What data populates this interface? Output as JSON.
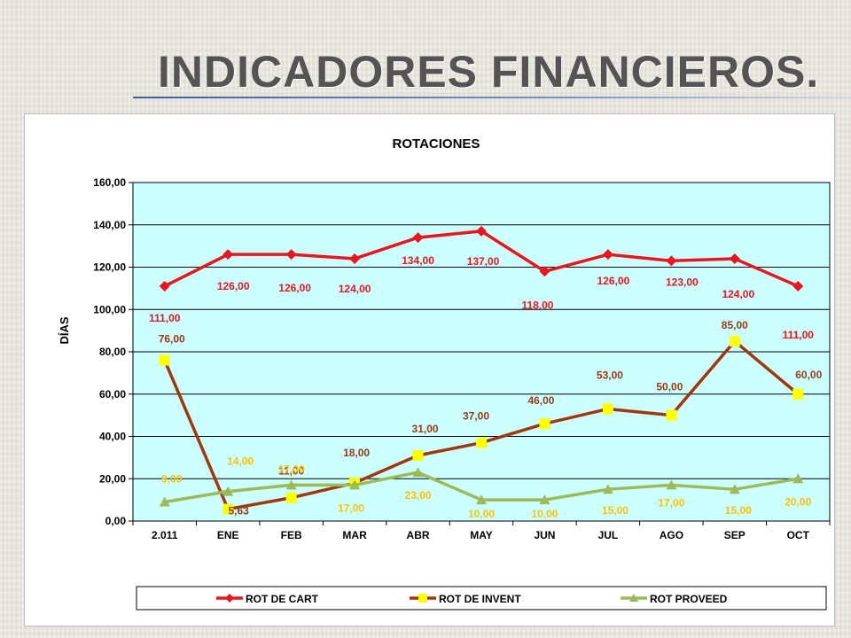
{
  "slide": {
    "title": "INDICADORES FINANCIEROS."
  },
  "chart_data": {
    "type": "line",
    "title": "ROTACIONES",
    "xlabel": "",
    "ylabel": "DÍAS",
    "ylim": [
      0,
      160
    ],
    "yticks": [
      "0,00",
      "20,00",
      "40,00",
      "60,00",
      "80,00",
      "100,00",
      "120,00",
      "140,00",
      "160,00"
    ],
    "categories": [
      "2.011",
      "ENE",
      "FEB",
      "MAR",
      "ABR",
      "MAY",
      "JUN",
      "JUL",
      "AGO",
      "SEP",
      "OCT"
    ],
    "grid": true,
    "legend_position": "bottom",
    "plot_background": "#ccffff",
    "series": [
      {
        "name": "ROT DE CART",
        "color": "#e8171f",
        "label_color": "#e8171f",
        "marker": "diamond",
        "values": [
          111,
          126,
          126,
          124,
          134,
          137,
          118,
          126,
          123,
          124,
          111
        ],
        "labels": [
          "111,00",
          "126,00",
          "126,00",
          "124,00",
          "134,00",
          "137,00",
          "118,00",
          "126,00",
          "123,00",
          "124,00",
          "111,00"
        ]
      },
      {
        "name": "ROT DE INVENT",
        "color": "#a0380e",
        "label_color": "#9a3a12",
        "marker_color": "#ffff00",
        "marker": "square",
        "values": [
          76,
          5.63,
          11,
          18,
          31,
          37,
          46,
          53,
          50,
          85,
          60
        ],
        "labels": [
          "76,00",
          "5,63",
          "11,00",
          "18,00",
          "31,00",
          "37,00",
          "46,00",
          "53,00",
          "50,00",
          "85,00",
          "60,00"
        ]
      },
      {
        "name": "ROT PROVEED",
        "color": "#9bbb59",
        "label_color": "#ffc000",
        "marker": "triangle",
        "values": [
          9,
          14,
          17,
          17,
          23,
          10,
          10,
          15,
          17,
          15,
          20
        ],
        "labels": [
          "9,00",
          "14,00",
          "17,00",
          "17,00",
          "23,00",
          "10,00",
          "10,00",
          "15,00",
          "17,00",
          "15,00",
          "20,00"
        ]
      }
    ]
  }
}
